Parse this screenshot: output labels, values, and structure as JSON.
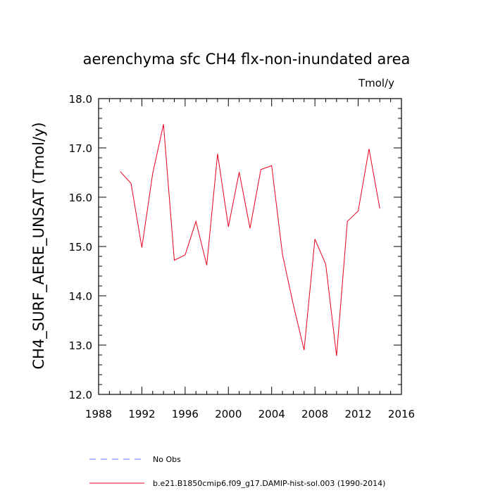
{
  "chart_data": {
    "type": "line",
    "title": "aerenchyma sfc CH4 flx-non-inundated area",
    "units": "Tmol/y",
    "xlabel": "",
    "ylabel": "CH4_SURF_AERE_UNSAT  (Tmol/y)",
    "xlim": [
      1988,
      2016
    ],
    "ylim": [
      12.0,
      18.0
    ],
    "xticks": [
      "1988",
      "1992",
      "1996",
      "2000",
      "2004",
      "2008",
      "2012",
      "2016"
    ],
    "yticks": [
      "12.0",
      "13.0",
      "14.0",
      "15.0",
      "16.0",
      "17.0",
      "18.0"
    ],
    "grid": false,
    "legend_position": "bottom",
    "series": [
      {
        "name": "b.e21.B1850cmip6.f09_g17.DAMIP-hist-sol.003 (1990-2014)",
        "color": "#e8001c",
        "style": "solid",
        "x": [
          1990,
          1991,
          1992,
          1993,
          1994,
          1995,
          1996,
          1997,
          1998,
          1999,
          2000,
          2001,
          2002,
          2003,
          2004,
          2005,
          2006,
          2007,
          2008,
          2009,
          2010,
          2011,
          2012,
          2013,
          2014
        ],
        "y": [
          16.52,
          16.28,
          14.98,
          16.48,
          17.48,
          14.72,
          14.83,
          15.51,
          14.62,
          16.88,
          15.4,
          16.51,
          15.37,
          16.56,
          16.64,
          14.84,
          13.82,
          12.9,
          15.15,
          14.64,
          12.78,
          15.51,
          15.72,
          16.98,
          15.77
        ]
      },
      {
        "name": "No Obs",
        "color": "#6b6bff",
        "style": "dashed",
        "x": [],
        "y": []
      }
    ]
  }
}
